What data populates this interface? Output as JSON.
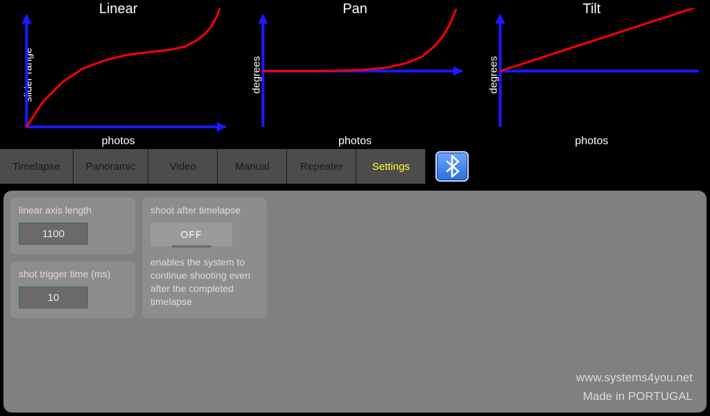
{
  "colors": {
    "background": "#000000",
    "axis": "#1a1aff",
    "curve": "#ff0000",
    "panel": "#808080",
    "card": "#8d8d8d",
    "field_bg": "#6a6a6a",
    "field_border": "#3d6d7a",
    "tab_bg": "#4c4c4c",
    "tab_text": "#1a1a1a",
    "tab_active_text": "#ffff33",
    "text_light": "#dcdcdc",
    "white": "#ffffff"
  },
  "charts": [
    {
      "title": "Linear",
      "ylabel": "slider range",
      "xlabel": "photos",
      "type": "line",
      "xlim": [
        0,
        100
      ],
      "ylim": [
        0,
        100
      ],
      "points": [
        [
          0,
          0
        ],
        [
          8,
          22
        ],
        [
          18,
          40
        ],
        [
          28,
          52
        ],
        [
          40,
          60
        ],
        [
          52,
          65
        ],
        [
          62,
          67
        ],
        [
          72,
          69
        ],
        [
          80,
          72
        ],
        [
          86,
          78
        ],
        [
          90,
          84
        ],
        [
          93,
          90
        ],
        [
          96,
          100
        ],
        [
          98,
          110
        ]
      ],
      "axis_color": "#1a1aff",
      "curve_color": "#ff0000",
      "line_width": 3
    },
    {
      "title": "Pan",
      "ylabel": "degrees",
      "xlabel": "photos",
      "type": "line",
      "xlim": [
        0,
        100
      ],
      "ylim": [
        0,
        100
      ],
      "points": [
        [
          0,
          50
        ],
        [
          30,
          50
        ],
        [
          50,
          51
        ],
        [
          62,
          53
        ],
        [
          72,
          57
        ],
        [
          80,
          63
        ],
        [
          86,
          72
        ],
        [
          90,
          80
        ],
        [
          94,
          92
        ],
        [
          97,
          105
        ]
      ],
      "axis_color": "#1a1aff",
      "curve_color": "#ff0000",
      "line_width": 3,
      "y_baseline": 50
    },
    {
      "title": "Tilt",
      "ylabel": "degrees",
      "xlabel": "photos",
      "type": "line",
      "xlim": [
        0,
        100
      ],
      "ylim": [
        0,
        100
      ],
      "points": [
        [
          0,
          50
        ],
        [
          100,
          108
        ]
      ],
      "axis_color": "#1a1aff",
      "curve_color": "#ff0000",
      "line_width": 3,
      "y_baseline": 50,
      "hide_x_arrow": true
    }
  ],
  "tabs": {
    "items": [
      {
        "label": "Timelapse",
        "active": false
      },
      {
        "label": "Panoramic",
        "active": false
      },
      {
        "label": "Video",
        "active": false
      },
      {
        "label": "Manual",
        "active": false
      },
      {
        "label": "Repeater",
        "active": false
      },
      {
        "label": "Settings",
        "active": true
      }
    ],
    "bluetooth": {
      "name": "bluetooth-icon"
    }
  },
  "settings": {
    "linear_axis_length": {
      "label": "linear axis length",
      "value": "1100"
    },
    "shot_trigger": {
      "label": "shot trigger time (ms)",
      "value": "10"
    },
    "shoot_after": {
      "label": "shoot after timelapse",
      "toggle": "OFF",
      "description": "enables the system to continue shooting even after the completed timelapse"
    }
  },
  "footer": {
    "url": "www.systems4you.net",
    "madein": "Made in PORTUGAL"
  }
}
